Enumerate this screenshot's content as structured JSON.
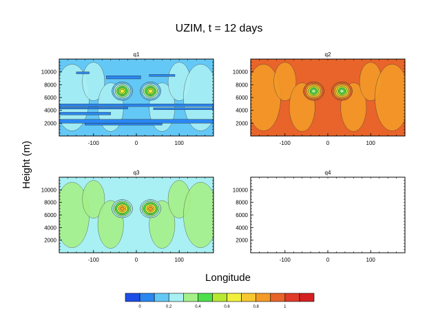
{
  "figure": {
    "title": "UZIM, t = 12 days",
    "xlabel": "Longitude",
    "ylabel": "Height (m)"
  },
  "chart_data": {
    "type": "heatmap",
    "title": "UZIM, t = 12 days",
    "xlabel": "Longitude",
    "ylabel": "Height (m)",
    "xlim": [
      -180,
      180
    ],
    "ylim": [
      0,
      12000
    ],
    "xticks": [
      -100,
      0,
      100
    ],
    "yticks": [
      2000,
      4000,
      6000,
      8000,
      10000
    ],
    "panels": [
      {
        "name": "q1",
        "background_level": 0.1,
        "features": [
          {
            "shape": "bands",
            "level": 0.0,
            "y": [
              4800,
              3600,
              2000,
              10000
            ],
            "note": ""
          },
          {
            "shape": "vortex",
            "x": -33,
            "y": 7000,
            "peak_level": 0.6
          },
          {
            "shape": "vortex",
            "x": 33,
            "y": 7000,
            "peak_level": 0.6
          }
        ]
      },
      {
        "name": "q2",
        "background_level": 0.9,
        "features": [
          {
            "shape": "vortex",
            "x": -33,
            "y": 7000,
            "peak_level": 0.3
          },
          {
            "shape": "vortex",
            "x": 33,
            "y": 7000,
            "peak_level": 0.3
          }
        ]
      },
      {
        "name": "q3",
        "background_level": 0.2,
        "features": [
          {
            "shape": "vortex",
            "x": -33,
            "y": 7000,
            "peak_level": 0.8
          },
          {
            "shape": "vortex",
            "x": 33,
            "y": 7000,
            "peak_level": 0.8
          }
        ]
      },
      {
        "name": "q4",
        "background_level": null,
        "features": []
      }
    ],
    "colorbar": {
      "colors": [
        "#1d4ee6",
        "#2b86f0",
        "#64c8f6",
        "#a8f0f4",
        "#a6f08a",
        "#4ee04c",
        "#b8e832",
        "#f0f03c",
        "#f8c832",
        "#f49a28",
        "#e8642a",
        "#e03a28",
        "#d42020"
      ],
      "tick_labels": [
        "0",
        "0.2",
        "0.4",
        "0.6",
        "0.8",
        "1"
      ],
      "tick_values": [
        0,
        0.2,
        0.4,
        0.6,
        0.8,
        1
      ]
    }
  }
}
